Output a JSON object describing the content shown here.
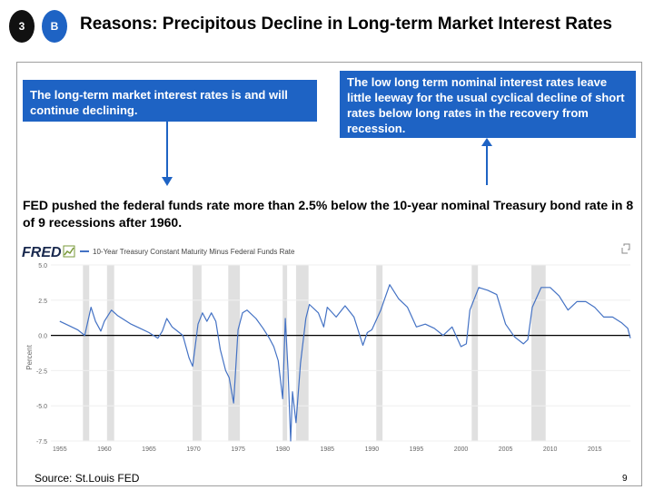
{
  "badges": {
    "number": "3",
    "letter": "B"
  },
  "title": "Reasons:  Precipitous Decline in Long-term Market Interest Rates",
  "box_left": "The long-term market interest rates is and will continue declining.",
  "box_right": "The low long term nominal interest rates leave little leeway for the usual cyclical decline of short rates below long rates in the recovery from recession.",
  "statement": "FED pushed the federal funds rate more than 2.5%  below the 10-year nominal Treasury bond rate in 8 of 9 recessions after 1960.",
  "chart_header": {
    "logo": "FRED",
    "legend": "10-Year Treasury Constant Maturity Minus Federal Funds Rate"
  },
  "chart_data": {
    "type": "line",
    "ylabel": "Percent",
    "ylim": [
      -7.5,
      5.0
    ],
    "xlim": [
      1954,
      2019
    ],
    "yticks": [
      "5.0",
      "2.5",
      "0.0",
      "-2.5",
      "-5.0",
      "-7.5"
    ],
    "xticks": [
      "1955",
      "1960",
      "1965",
      "1970",
      "1975",
      "1980",
      "1985",
      "1990",
      "1995",
      "2000",
      "2005",
      "2010",
      "2015"
    ],
    "recessions": [
      [
        1957.6,
        1958.3
      ],
      [
        1960.3,
        1961.1
      ],
      [
        1969.9,
        1970.9
      ],
      [
        1973.9,
        1975.2
      ],
      [
        1980.0,
        1980.5
      ],
      [
        1981.5,
        1982.9
      ],
      [
        1990.5,
        1991.2
      ],
      [
        2001.2,
        2001.9
      ],
      [
        2007.9,
        2009.5
      ]
    ],
    "zero_line": 0,
    "series": [
      {
        "x": [
          1955,
          1956,
          1957,
          1957.8,
          1958.5,
          1959,
          1959.6,
          1960,
          1960.8,
          1961.5,
          1962,
          1963,
          1964,
          1965,
          1966,
          1966.5,
          1967,
          1967.6,
          1968,
          1968.8,
          1969.5,
          1969.9,
          1970.5,
          1971,
          1971.5,
          1972,
          1972.5,
          1973,
          1973.6,
          1974,
          1974.5,
          1975,
          1975.5,
          1976,
          1977,
          1977.8,
          1978.5,
          1979,
          1979.5,
          1980,
          1980.3,
          1980.6,
          1980.9,
          1981.1,
          1981.5,
          1982,
          1982.6,
          1983,
          1984,
          1984.6,
          1985,
          1986,
          1987,
          1988,
          1989,
          1989.5,
          1990,
          1991,
          1992,
          1993,
          1994,
          1995,
          1996,
          1997,
          1998,
          1999,
          2000,
          2000.6,
          2001,
          2002,
          2003,
          2004,
          2005,
          2006,
          2007,
          2007.5,
          2008,
          2009,
          2010,
          2011,
          2012,
          2013,
          2014,
          2015,
          2016,
          2017,
          2018,
          2018.7,
          2019
        ],
        "y": [
          1.0,
          0.7,
          0.4,
          0.0,
          2.0,
          1.0,
          0.3,
          1.0,
          1.8,
          1.4,
          1.2,
          0.8,
          0.5,
          0.2,
          -0.2,
          0.3,
          1.2,
          0.6,
          0.4,
          0.0,
          -1.6,
          -2.2,
          0.8,
          1.6,
          1.0,
          1.6,
          1.0,
          -1.0,
          -2.5,
          -3.0,
          -4.8,
          0.4,
          1.6,
          1.8,
          1.2,
          0.5,
          -0.2,
          -0.8,
          -1.8,
          -4.5,
          1.2,
          -2.5,
          -7.5,
          -4.0,
          -6.2,
          -2.0,
          1.2,
          2.2,
          1.6,
          0.6,
          2.0,
          1.3,
          2.1,
          1.3,
          -0.7,
          0.2,
          0.4,
          1.8,
          3.6,
          2.6,
          2.0,
          0.6,
          0.8,
          0.5,
          0.0,
          0.6,
          -0.8,
          -0.6,
          1.8,
          3.4,
          3.2,
          2.9,
          0.8,
          -0.1,
          -0.6,
          -0.3,
          2.0,
          3.4,
          3.4,
          2.8,
          1.8,
          2.4,
          2.4,
          2.0,
          1.3,
          1.3,
          0.9,
          0.5,
          -0.2
        ]
      }
    ]
  },
  "footer": {
    "source": "Source: St.Louis FED",
    "page": "9"
  },
  "colors": {
    "accent": "#1e63c4",
    "line": "#4472c4",
    "recession": "#e0e0e0"
  }
}
